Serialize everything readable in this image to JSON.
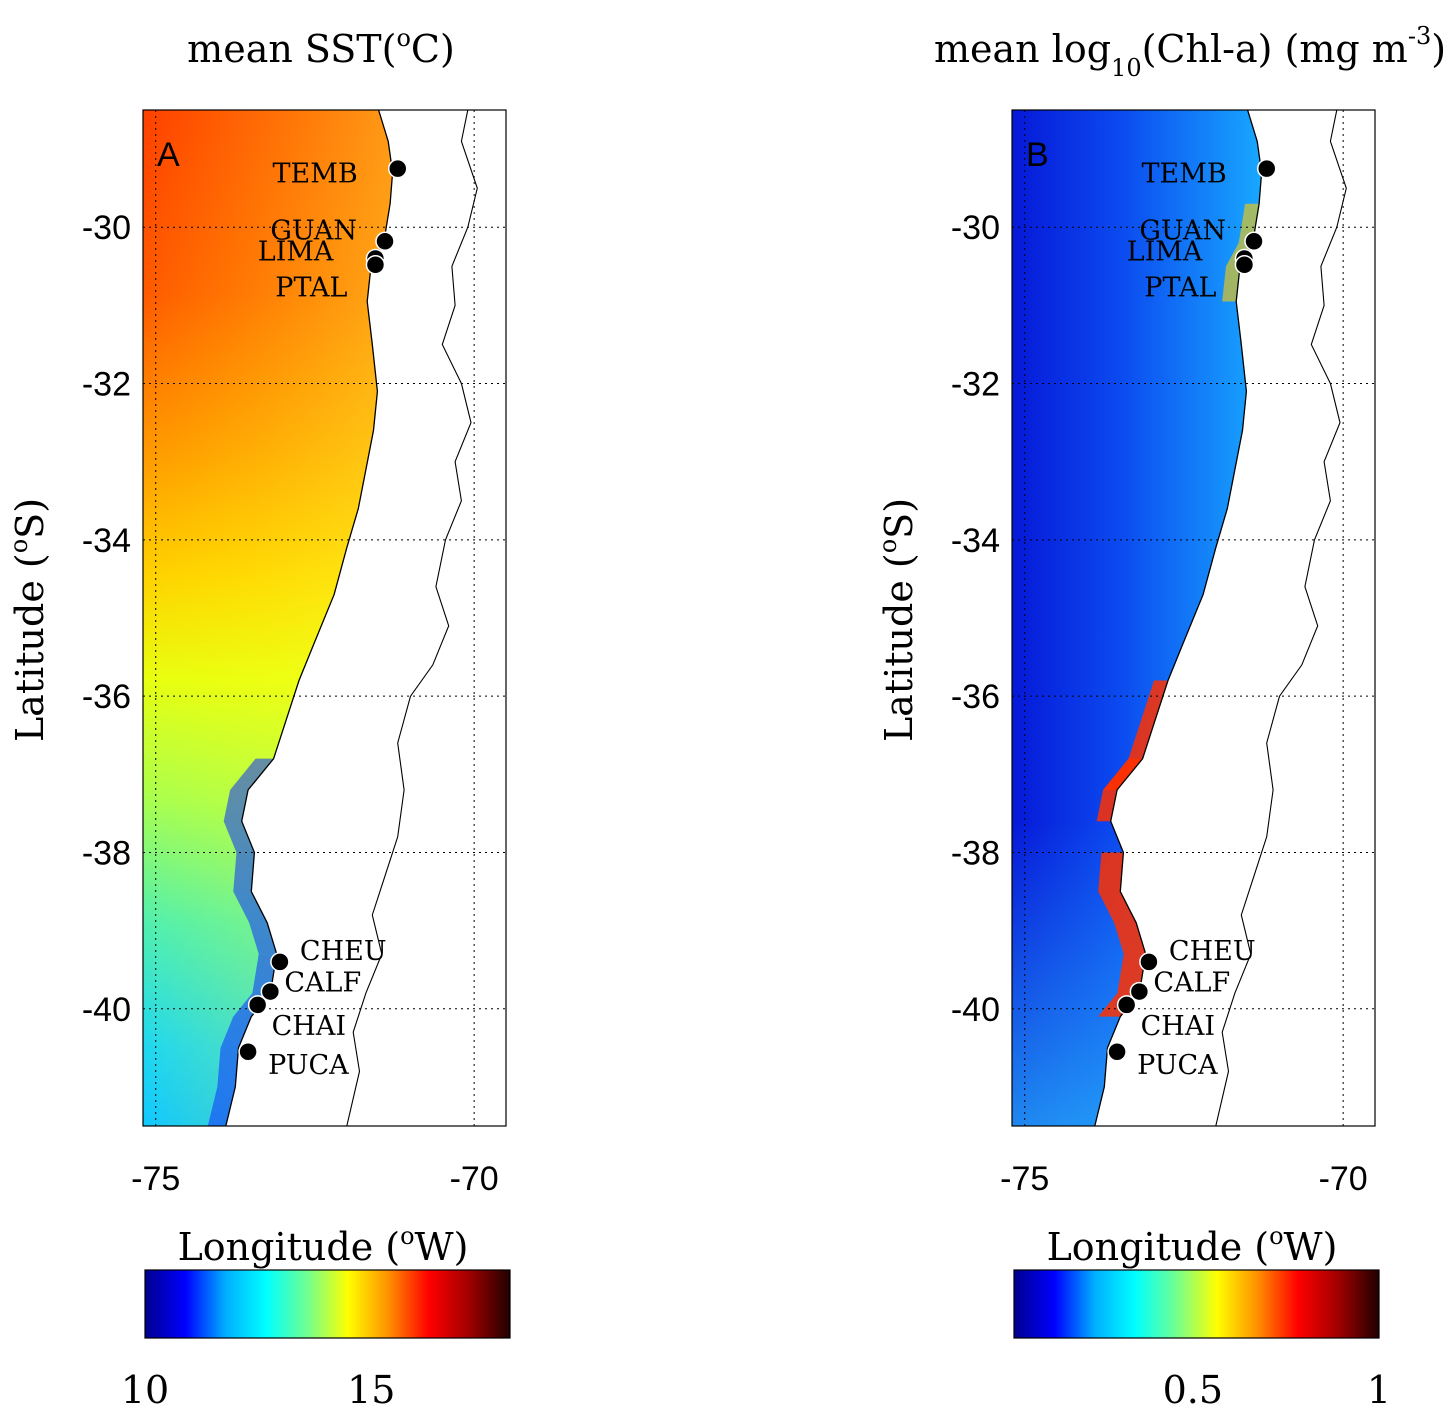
{
  "panels": [
    {
      "id": "A",
      "letter": "A",
      "title": {
        "main": "mean SST(",
        "sup": "o",
        "tail": "C)"
      },
      "ylabel": {
        "main": "Latitude (",
        "sup": "o",
        "tail": "S)"
      },
      "xlabel": {
        "main": "Longitude (",
        "sup": "o",
        "tail": "W)"
      },
      "xticks": [
        "-75",
        "-70"
      ],
      "yticks": [
        "-30",
        "-32",
        "-34",
        "-36",
        "-38",
        "-40"
      ],
      "colorbar": {
        "colors": [
          "#00008f",
          "#0000ff",
          "#00b0ff",
          "#00ffff",
          "#70ff90",
          "#ffff00",
          "#ff9000",
          "#ff0000",
          "#a00000",
          "#200000"
        ],
        "ticks": [
          "10",
          "15"
        ]
      },
      "ocean_colors": {
        "north": "#ff4200",
        "mid": "#ffe800",
        "south": "#30e0f0",
        "coast": "#1030ff"
      }
    },
    {
      "id": "B",
      "letter": "B",
      "title": {
        "main": "mean log",
        "sub": "10",
        "tail": "(Chl-a) (mg m",
        "sup": "-3",
        "close": ")"
      },
      "ylabel": {
        "main": "Latitude (",
        "sup": "o",
        "tail": "S)"
      },
      "xlabel": {
        "main": "Longitude (",
        "sup": "o",
        "tail": "W)"
      },
      "xticks": [
        "-75",
        "-70"
      ],
      "yticks": [
        "-30",
        "-32",
        "-34",
        "-36",
        "-38",
        "-40"
      ],
      "colorbar": {
        "colors": [
          "#00008f",
          "#0000ff",
          "#00b0ff",
          "#00ffff",
          "#70ff90",
          "#ffff00",
          "#ff9000",
          "#ff0000",
          "#a00000",
          "#200000"
        ],
        "ticks": [
          "0.5",
          "1"
        ]
      },
      "ocean_colors": {
        "offshore": "#0a30e8",
        "nearshore": "#1aa8ff",
        "coast": "#ff3000"
      }
    }
  ],
  "sites": [
    {
      "name": "TEMB",
      "lon": -71.2,
      "lat": -29.25
    },
    {
      "name": "GUAN",
      "lon": -71.4,
      "lat": -30.18
    },
    {
      "name": "LIMA",
      "lon": -71.55,
      "lat": -30.4
    },
    {
      "name": "PTAL",
      "lon": -71.55,
      "lat": -30.48
    },
    {
      "name": "CHEU",
      "lon": -73.05,
      "lat": -39.4
    },
    {
      "name": "CALF",
      "lon": -73.2,
      "lat": -39.78
    },
    {
      "name": "CHAI",
      "lon": -73.4,
      "lat": -39.95
    },
    {
      "name": "PUCA",
      "lon": -73.55,
      "lat": -40.55
    }
  ]
}
